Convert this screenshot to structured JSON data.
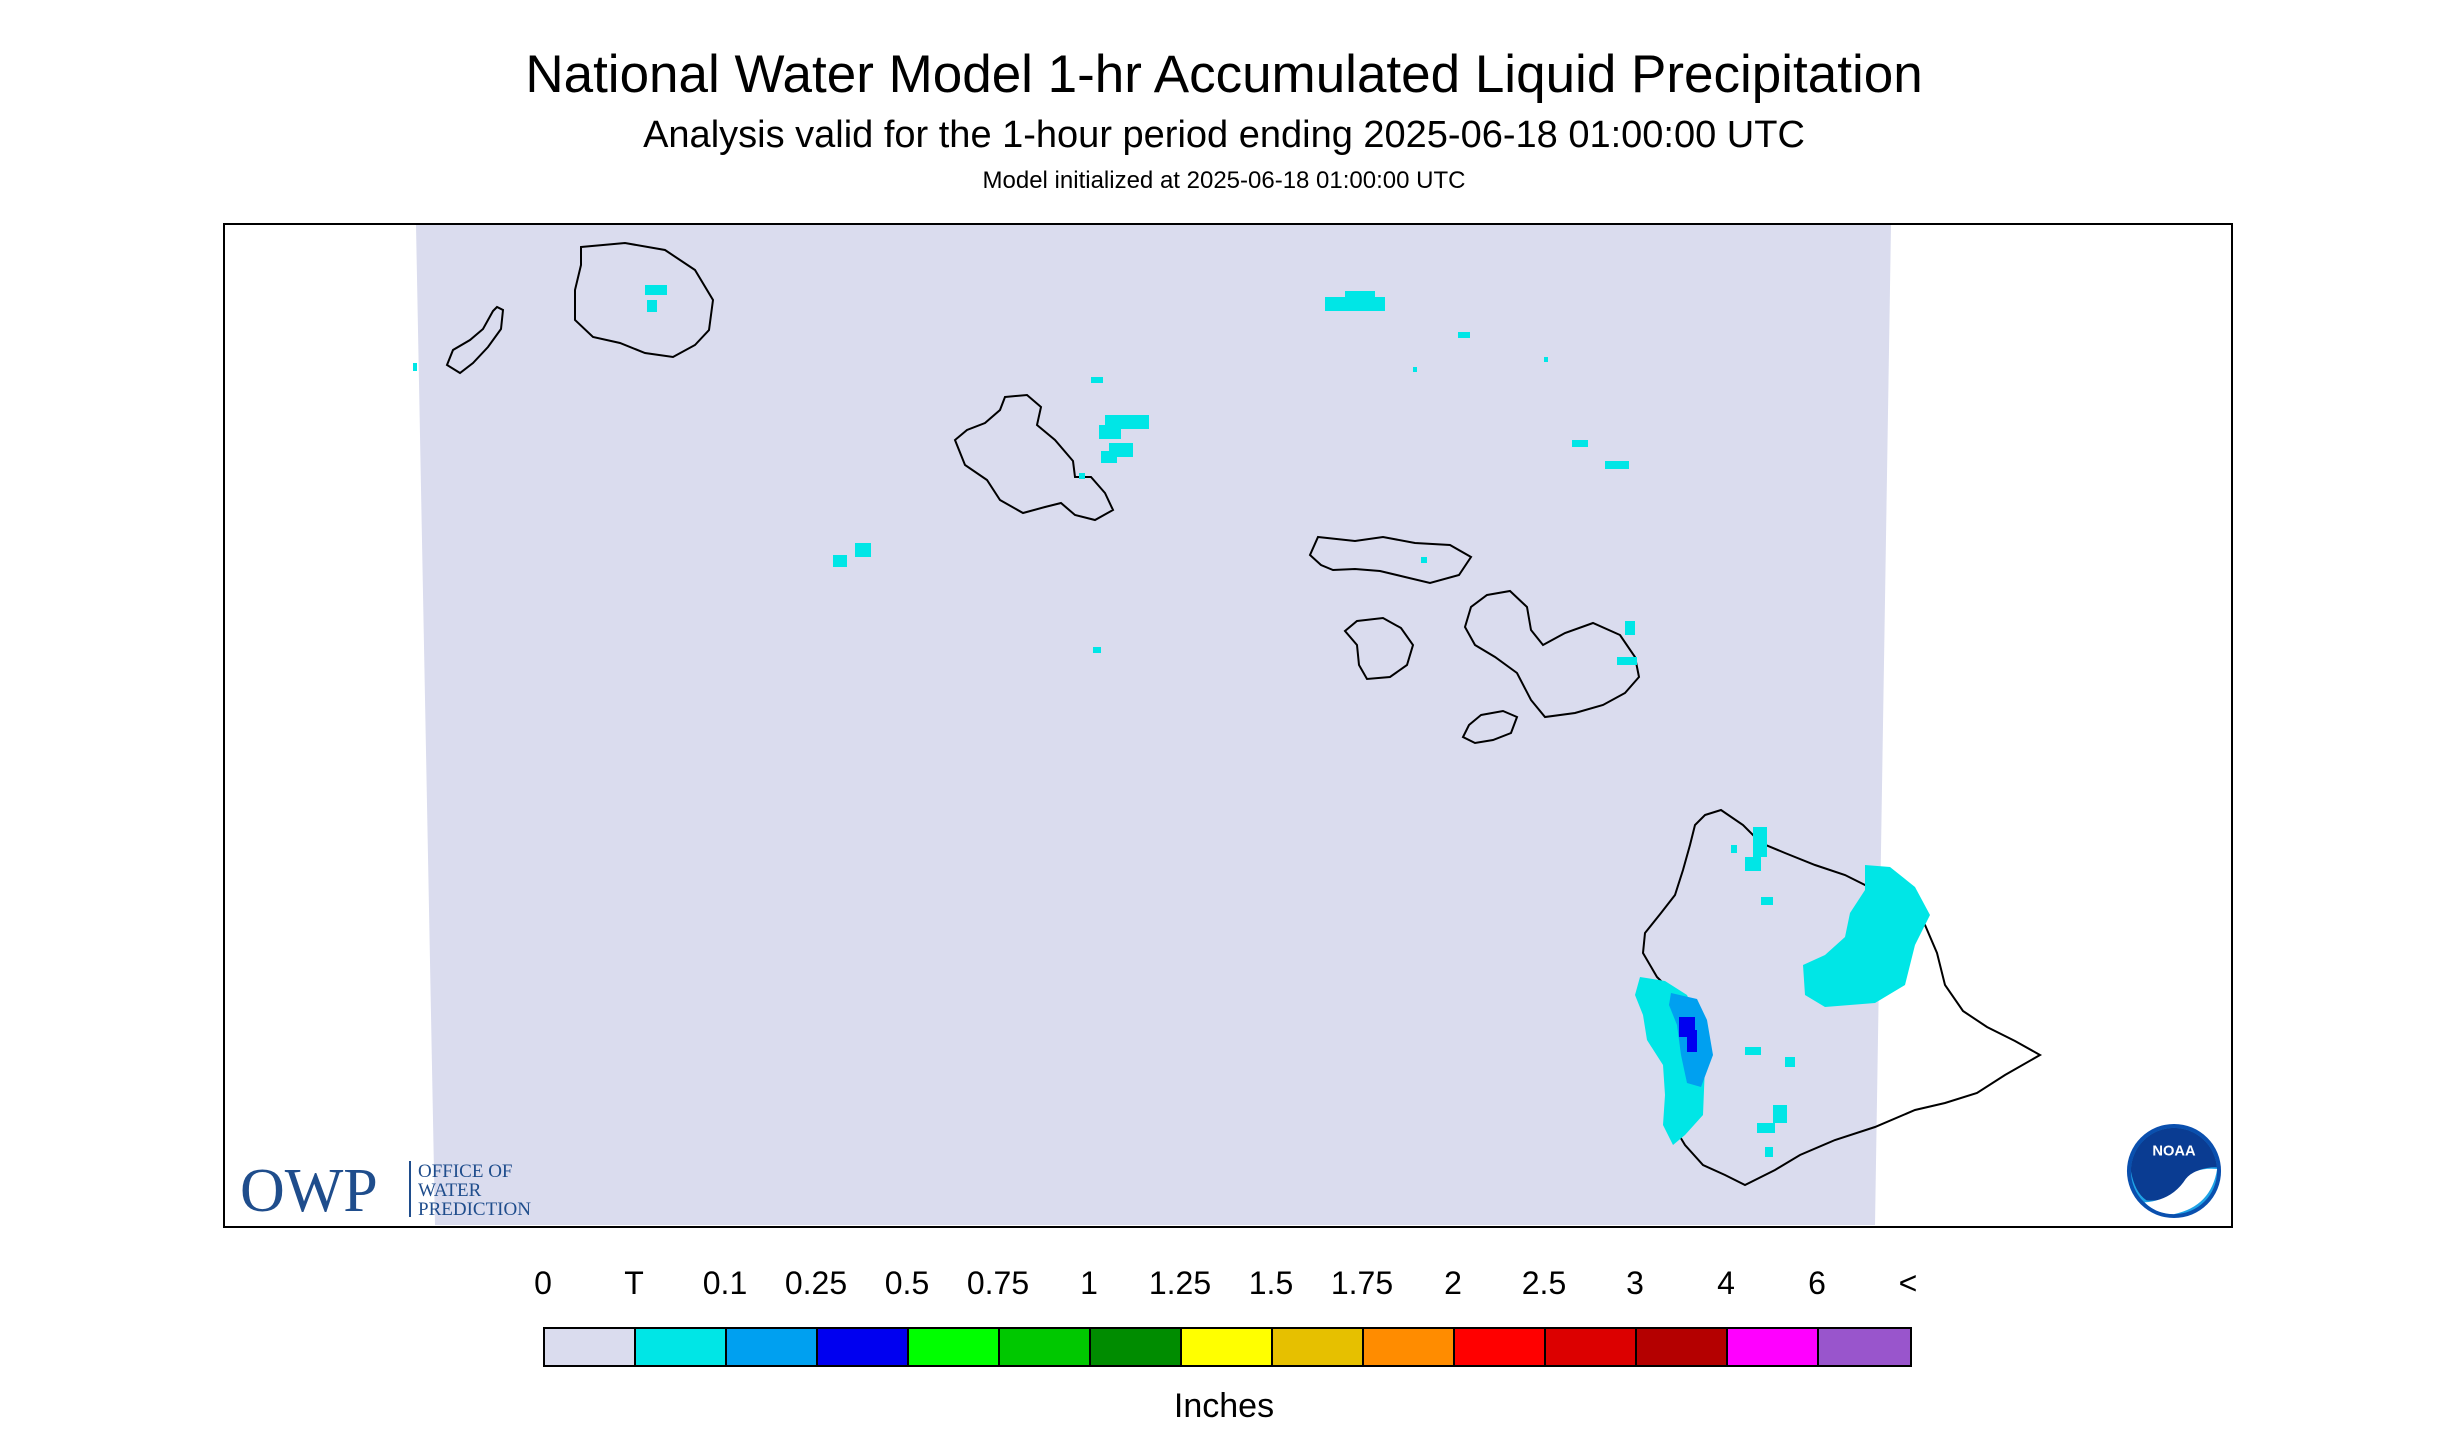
{
  "title": "National Water Model 1-hr Accumulated Liquid Precipitation",
  "subtitle": "Analysis valid for the 1-hour period ending 2025-06-18 01:00:00 UTC",
  "init_line": "Model initialized at 2025-06-18 01:00:00 UTC",
  "owp_logo": {
    "mark": "OWP",
    "line1": "OFFICE OF",
    "line2": "WATER",
    "line3": "PREDICTION"
  },
  "noaa_logo": {
    "text": "NOAA"
  },
  "legend": {
    "units": "Inches",
    "labels": [
      "0",
      "T",
      "0.1",
      "0.25",
      "0.5",
      "0.75",
      "1",
      "1.25",
      "1.5",
      "1.75",
      "2",
      "2.5",
      "3",
      "4",
      "6",
      "<"
    ],
    "colors": [
      "#dadcee",
      "#00e6e6",
      "#00a0f0",
      "#0000f0",
      "#00ff00",
      "#00c800",
      "#008c00",
      "#ffff00",
      "#e6c000",
      "#ff8c00",
      "#ff0000",
      "#dc0000",
      "#b40000",
      "#ff00ff",
      "#9955cc"
    ]
  },
  "colors": {
    "no_precip": "#dadcee",
    "trace": "#00e6e6",
    "light": "#00a0f0",
    "moderate": "#0000f0",
    "coastline": "#000000"
  }
}
